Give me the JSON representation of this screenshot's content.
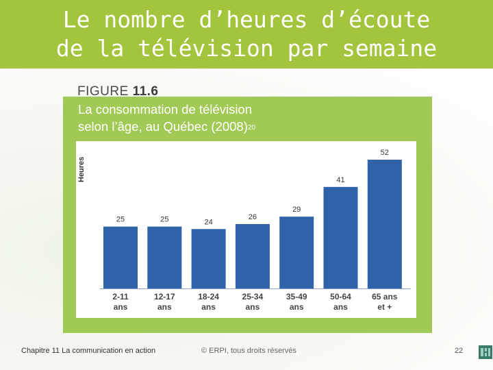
{
  "slide": {
    "title_line1": "Le nombre d’heures d’écoute",
    "title_line2": "de la télévision par semaine",
    "accent_color": "#a3c43d"
  },
  "figure": {
    "label_prefix": "FIGURE",
    "label_number": "11.6",
    "title_line1": "La consommation de télévision",
    "title_line2": "selon l’âge, au Québec (2008)",
    "title_note": "20",
    "panel_color": "#a0c955",
    "bar_color": "#2f62a8"
  },
  "chart_data": {
    "type": "bar",
    "title": "La consommation de télévision selon l’âge, au Québec (2008)",
    "ylabel": "Heures",
    "xlabel": "",
    "categories": [
      [
        "2-11",
        "ans"
      ],
      [
        "12-17",
        "ans"
      ],
      [
        "18-24",
        "ans"
      ],
      [
        "25-34",
        "ans"
      ],
      [
        "35-49",
        "ans"
      ],
      [
        "50-64",
        "ans"
      ],
      [
        "65 ans",
        "et +"
      ]
    ],
    "values": [
      25,
      25,
      24,
      26,
      29,
      41,
      52
    ],
    "ylim": [
      0,
      57
    ],
    "grid": false,
    "legend": "none"
  },
  "footer": {
    "chapter": "Chapitre 11  La  communication en action",
    "copyright": "© ERPI, tous droits réservés",
    "page": "22"
  }
}
